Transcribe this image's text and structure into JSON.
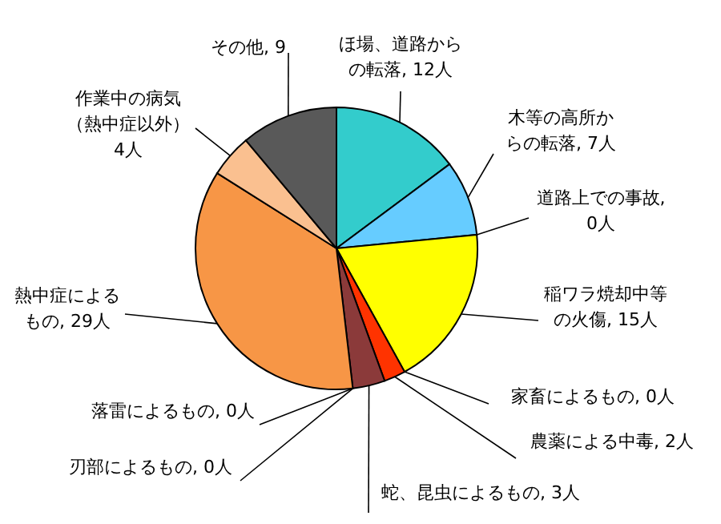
{
  "chart_data": {
    "type": "pie",
    "categories": [
      "ほ場、道路からの転落",
      "木等の高所からの転落",
      "道路上での事故",
      "稲ワラ焼却中等の火傷",
      "家畜によるもの",
      "農薬による中毒",
      "蛇、昆虫によるもの",
      "刃部によるもの",
      "落雷によるもの",
      "熱中症によるもの",
      "作業中の病気（熱中症以外）",
      "その他"
    ],
    "values": [
      12,
      7,
      0,
      15,
      0,
      2,
      3,
      0,
      0,
      29,
      4,
      9
    ],
    "colors": [
      "#33cccc",
      "#66ccff",
      "#99ccff",
      "#ffff00",
      "#ffcc00",
      "#ff3300",
      "#8b3a3a",
      "#c0c0c0",
      "#999999",
      "#f79646",
      "#fac090",
      "#595959"
    ],
    "value_labels": [
      ", 12人",
      ", 7人",
      ", 0人",
      ", 15人",
      ", 0人",
      ", 2人",
      ", 3人",
      ", 0人",
      ", 0人",
      ", 29人",
      "4人",
      ", 9"
    ]
  }
}
